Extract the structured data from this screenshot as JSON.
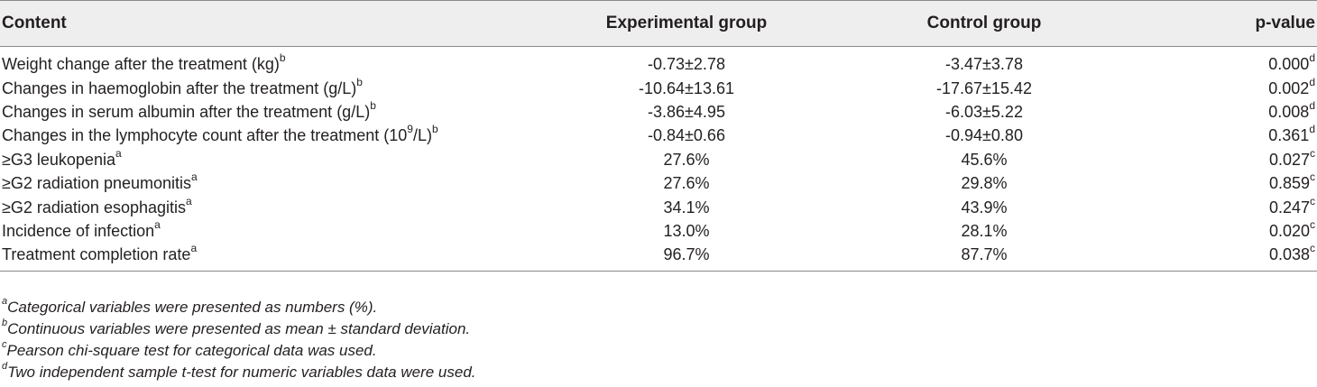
{
  "table": {
    "headers": {
      "content": "Content",
      "experimental": "Experimental group",
      "control": "Control group",
      "p_value": "p-value"
    },
    "rows": [
      {
        "label": "Weight change after the treatment (kg)",
        "label_sup": "b",
        "experimental": "-0.73±2.78",
        "control": "-3.47±3.78",
        "p": "0.000",
        "p_sup": "d"
      },
      {
        "label": "Changes in haemoglobin after the treatment (g/L)",
        "label_sup": "b",
        "experimental": "-10.64±13.61",
        "control": "-17.67±15.42",
        "p": "0.002",
        "p_sup": "d"
      },
      {
        "label": "Changes in serum albumin after the treatment (g/L)",
        "label_sup": "b",
        "experimental": "-3.86±4.95",
        "control": "-6.03±5.22",
        "p": "0.008",
        "p_sup": "d"
      },
      {
        "label_pre": "Changes in the lymphocyte count after the treatment (10",
        "label_exp": "9",
        "label_post": "/L)",
        "label_sup": "b",
        "experimental": "-0.84±0.66",
        "control": "-0.94±0.80",
        "p": "0.361",
        "p_sup": "d"
      },
      {
        "label": "≥G3 leukopenia",
        "label_sup": "a",
        "experimental": "27.6%",
        "control": "45.6%",
        "p": "0.027",
        "p_sup": "c"
      },
      {
        "label": "≥G2 radiation pneumonitis",
        "label_sup": "a",
        "experimental": "27.6%",
        "control": "29.8%",
        "p": "0.859",
        "p_sup": "c"
      },
      {
        "label": "≥G2 radiation esophagitis",
        "label_sup": "a",
        "experimental": "34.1%",
        "control": "43.9%",
        "p": "0.247",
        "p_sup": "c"
      },
      {
        "label": "Incidence of infection",
        "label_sup": "a",
        "experimental": "13.0%",
        "control": "28.1%",
        "p": "0.020",
        "p_sup": "c"
      },
      {
        "label": "Treatment completion rate",
        "label_sup": "a",
        "experimental": "96.7%",
        "control": "87.7%",
        "p": "0.038",
        "p_sup": "c"
      }
    ]
  },
  "footnotes": [
    {
      "mark": "a",
      "text": "Categorical variables were presented as numbers (%)."
    },
    {
      "mark": "b",
      "text": "Continuous variables were presented as mean ± standard deviation."
    },
    {
      "mark": "c",
      "text": "Pearson chi-square test for categorical data was used."
    },
    {
      "mark": "d",
      "text": "Two independent sample t-test for numeric variables data were used."
    }
  ]
}
